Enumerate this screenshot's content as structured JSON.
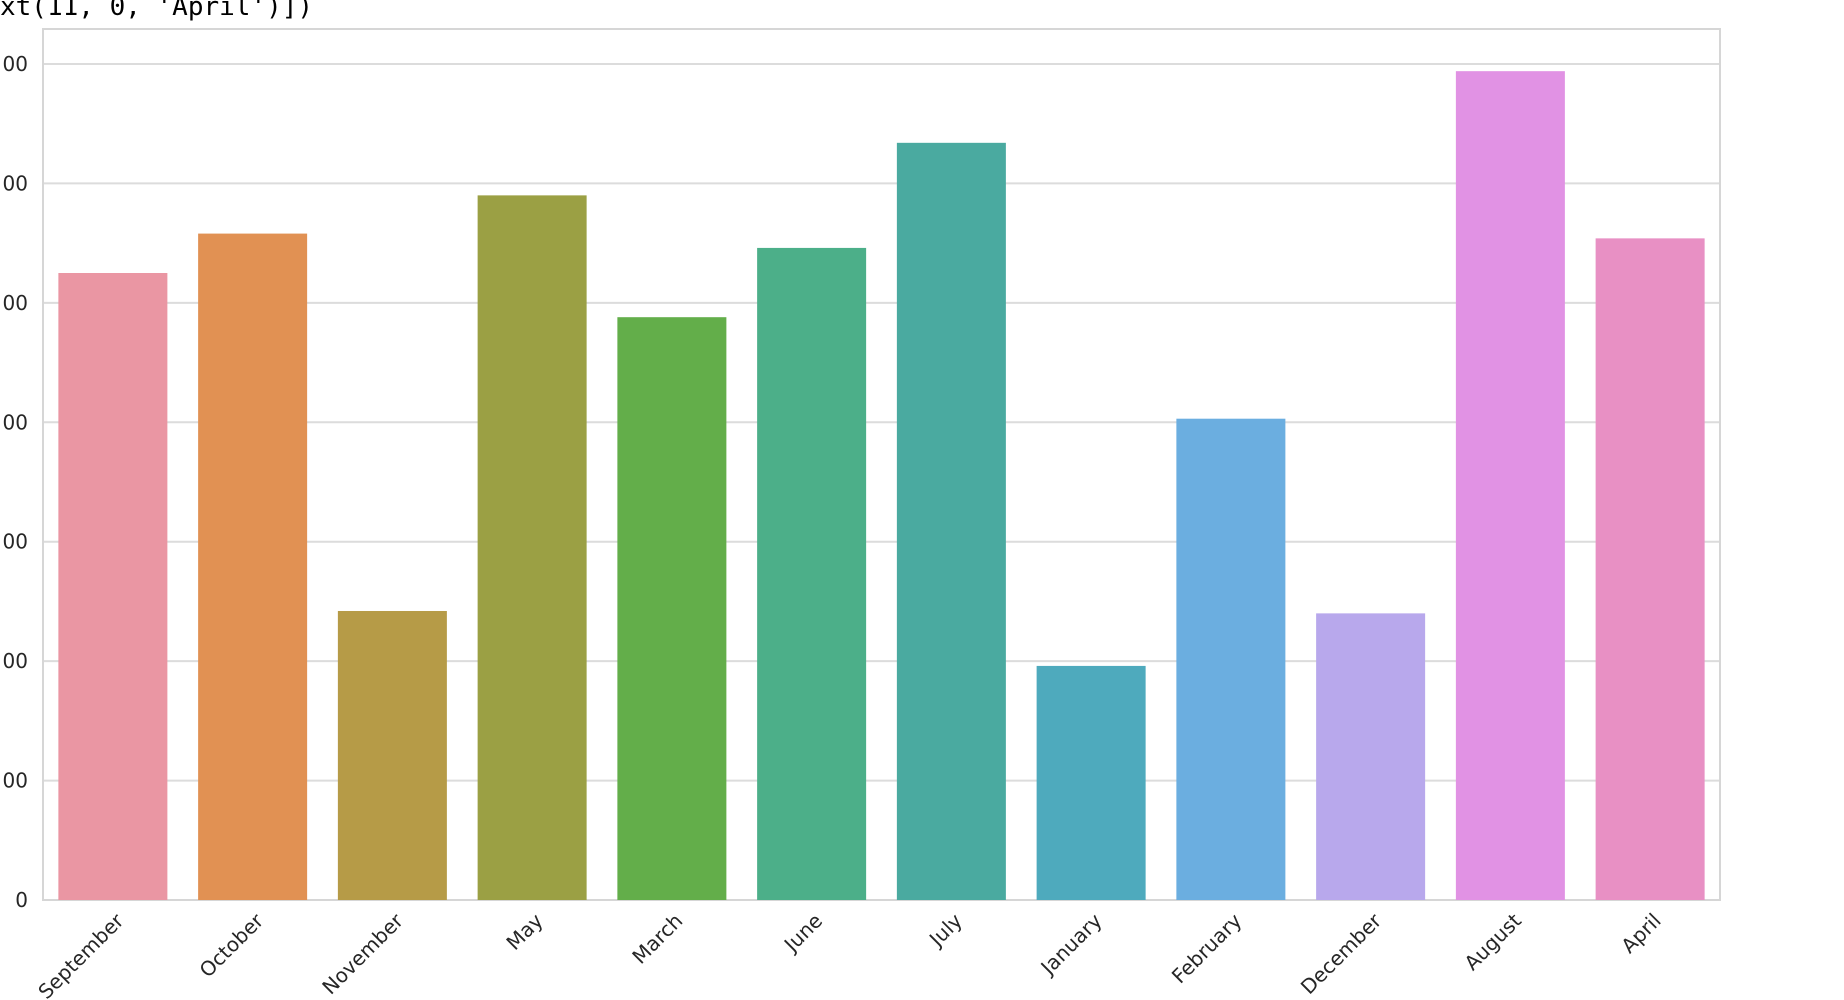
{
  "code_snippet": "xt(11, 0, 'April')])",
  "chart_data": {
    "type": "bar",
    "categories": [
      "September",
      "October",
      "November",
      "May",
      "March",
      "June",
      "July",
      "January",
      "February",
      "December",
      "August",
      "April"
    ],
    "values": [
      5250,
      5580,
      2420,
      5900,
      4880,
      5460,
      6340,
      1960,
      4030,
      2400,
      6940,
      5540
    ],
    "colors": [
      "#ea96a3",
      "#e19153",
      "#b69b47",
      "#9ba044",
      "#63ae4a",
      "#4caf89",
      "#4aaaa0",
      "#4eaabd",
      "#6baee0",
      "#b8a8ec",
      "#e192e4",
      "#e890c4"
    ],
    "y_tick_labels": [
      "0",
      "00",
      "00",
      "00",
      "00",
      "00",
      "00",
      "00"
    ],
    "ylim": [
      0,
      7000
    ],
    "y_ticks": [
      0,
      1000,
      2000,
      3000,
      4000,
      5000,
      6000,
      7000
    ],
    "grid": true,
    "title": "",
    "xlabel": "",
    "ylabel": ""
  }
}
